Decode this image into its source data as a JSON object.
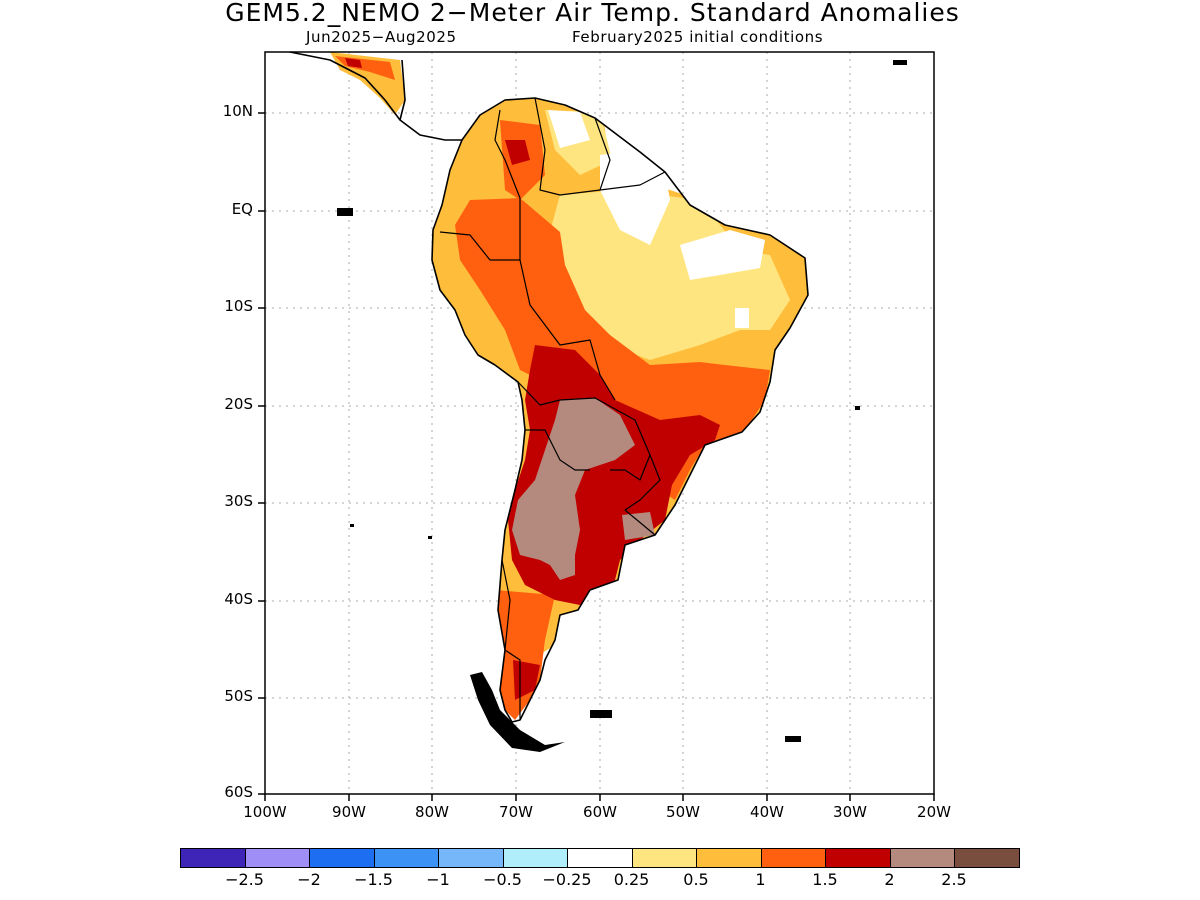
{
  "title": "GEM5.2_NEMO 2−Meter Air Temp. Standard Anomalies",
  "subtitle_left": "Jun2025−Aug2025",
  "subtitle_right": "February2025 initial conditions",
  "chart_data": {
    "type": "heatmap",
    "title": "GEM5.2_NEMO 2−Meter Air Temp. Standard Anomalies",
    "period": "Jun2025−Aug2025",
    "initial_conditions": "February2025 initial conditions",
    "region": "South America",
    "lon_range": [
      -100,
      -20
    ],
    "lat_range": [
      -60,
      15
    ],
    "y_ticks": [
      {
        "lat": 10,
        "label": "10N"
      },
      {
        "lat": 0,
        "label": "EQ"
      },
      {
        "lat": -10,
        "label": "10S"
      },
      {
        "lat": -20,
        "label": "20S"
      },
      {
        "lat": -30,
        "label": "30S"
      },
      {
        "lat": -40,
        "label": "40S"
      },
      {
        "lat": -50,
        "label": "50S"
      },
      {
        "lat": -60,
        "label": "60S"
      }
    ],
    "x_ticks": [
      {
        "lon": -100,
        "label": "100W"
      },
      {
        "lon": -90,
        "label": "90W"
      },
      {
        "lon": -80,
        "label": "80W"
      },
      {
        "lon": -70,
        "label": "70W"
      },
      {
        "lon": -60,
        "label": "60W"
      },
      {
        "lon": -50,
        "label": "50W"
      },
      {
        "lon": -40,
        "label": "40W"
      },
      {
        "lon": -30,
        "label": "30W"
      },
      {
        "lon": -20,
        "label": "20W"
      }
    ],
    "grid": "dotted",
    "colorbar": {
      "colors": [
        "#3f24b8",
        "#9e8ef5",
        "#1d6ef0",
        "#3d93f5",
        "#76b7fa",
        "#b0eefb",
        "#ffffff",
        "#ffe580",
        "#ffbd3c",
        "#ff6010",
        "#c00000",
        "#b48a7e",
        "#7a4e3e"
      ],
      "labels": [
        "−2.5",
        "−2",
        "−1.5",
        "−1",
        "−0.5",
        "−0.25",
        "0.25",
        "0.5",
        "1",
        "1.5",
        "2",
        "2.5"
      ]
    },
    "anomaly_regions": [
      {
        "category": "0.5",
        "color": "#ffe580",
        "area": "central/northeastern Brazil"
      },
      {
        "category": "1",
        "color": "#ffbd3c",
        "area": "Colombia, Ecuador, Peru coast, eastern Brazil"
      },
      {
        "category": "1.5",
        "color": "#ff6010",
        "area": "western Amazon, Andes, southeast Brazil, Patagonia"
      },
      {
        "category": "2",
        "color": "#c00000",
        "area": "Bolivia, Paraguay, southern Brazil, central Argentina"
      },
      {
        "category": "2.5",
        "color": "#b48a7e",
        "area": "northern and central Argentina, Paraguay"
      }
    ]
  }
}
